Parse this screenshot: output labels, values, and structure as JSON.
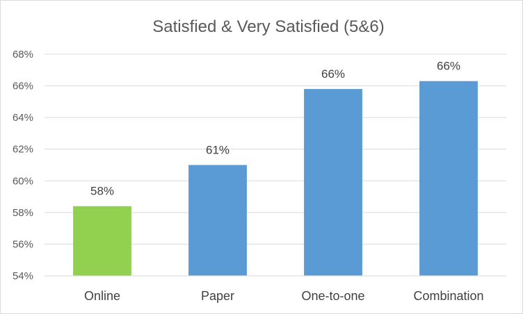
{
  "chart_data": {
    "type": "bar",
    "title": "Satisfied & Very Satisfied (5&6)",
    "categories": [
      "Online",
      "Paper",
      "One-to-one",
      "Combination"
    ],
    "values": [
      58.4,
      61.0,
      65.8,
      66.3
    ],
    "data_labels": [
      "58%",
      "61%",
      "66%",
      "66%"
    ],
    "colors": [
      "#92d050",
      "#5b9bd5",
      "#5b9bd5",
      "#5b9bd5"
    ],
    "ylim": [
      54,
      68
    ],
    "y_ticks": [
      54,
      56,
      58,
      60,
      62,
      64,
      66,
      68
    ],
    "y_tick_labels": [
      "54%",
      "56%",
      "58%",
      "60%",
      "62%",
      "64%",
      "66%",
      "68%"
    ],
    "grid": true,
    "xlabel": "",
    "ylabel": ""
  }
}
